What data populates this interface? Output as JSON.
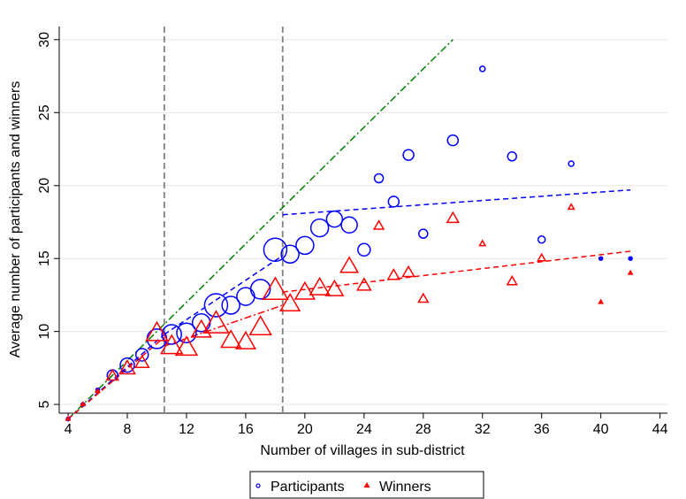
{
  "chart_data": {
    "type": "scatter",
    "xlabel": "Number of villages in sub-district",
    "ylabel": "Average number of participants and winners",
    "x": [
      4,
      5,
      6,
      7,
      8,
      9,
      10,
      11,
      12,
      13,
      14,
      15,
      16,
      17,
      18,
      19,
      20,
      21,
      22,
      23,
      24,
      25,
      26,
      27,
      28,
      30,
      32,
      34,
      36,
      38,
      40,
      42
    ],
    "series": [
      {
        "name": "Participants",
        "color": "#0000ff",
        "marker": "circle",
        "values": [
          4.0,
          5.0,
          6.0,
          7.0,
          7.7,
          8.4,
          9.5,
          9.8,
          9.9,
          10.6,
          11.8,
          11.8,
          12.4,
          12.9,
          15.6,
          15.3,
          15.9,
          17.1,
          17.7,
          17.3,
          15.6,
          20.5,
          18.9,
          22.1,
          16.7,
          23.1,
          28.0,
          22.0,
          16.3,
          21.5,
          15.0,
          15.0
        ],
        "sizes": [
          2,
          2,
          2,
          6,
          8,
          7,
          11,
          11,
          11,
          10,
          13,
          10,
          10,
          11,
          13,
          10,
          10,
          10,
          9,
          9,
          7,
          5,
          6,
          6,
          5,
          6,
          3,
          5,
          4,
          3,
          2,
          2
        ]
      },
      {
        "name": "Winners",
        "color": "#ff0000",
        "marker": "triangle",
        "values": [
          4.0,
          5.0,
          5.9,
          6.9,
          7.4,
          7.8,
          9.8,
          8.9,
          8.8,
          10.0,
          10.4,
          9.3,
          9.2,
          10.2,
          12.7,
          11.8,
          12.6,
          12.9,
          12.8,
          14.4,
          13.1,
          17.2,
          13.8,
          14.0,
          12.2,
          17.7,
          16.0,
          13.4,
          15.0,
          18.5,
          12.0,
          14.0
        ],
        "sizes": [
          2,
          2,
          2,
          6,
          8,
          7,
          11,
          11,
          11,
          10,
          13,
          10,
          10,
          11,
          13,
          10,
          10,
          10,
          9,
          9,
          7,
          5,
          6,
          6,
          5,
          6,
          3,
          5,
          4,
          3,
          2,
          2
        ]
      }
    ],
    "fit_lines": [
      {
        "color": "#008000",
        "dash": "8 3 2 3",
        "x": [
          4,
          30
        ],
        "y": [
          4,
          30
        ]
      },
      {
        "color": "#0000ff",
        "dash": "6 4",
        "x": [
          4,
          10.5
        ],
        "y": [
          4,
          9.8
        ]
      },
      {
        "color": "#0000ff",
        "dash": "6 4",
        "x": [
          10.5,
          18.5
        ],
        "y": [
          9.8,
          15.2
        ]
      },
      {
        "color": "#0000ff",
        "dash": "6 4",
        "x": [
          18.5,
          42
        ],
        "y": [
          18.0,
          19.7
        ]
      },
      {
        "color": "#ff0000",
        "dash": "6 4",
        "x": [
          4,
          10.5
        ],
        "y": [
          4,
          9.6
        ]
      },
      {
        "color": "#ff0000",
        "dash": "8 3 2 3",
        "x": [
          10.5,
          18.5
        ],
        "y": [
          9.0,
          11.8
        ]
      },
      {
        "color": "#ff0000",
        "dash": "6 4",
        "x": [
          18.5,
          42
        ],
        "y": [
          12.7,
          15.5
        ]
      }
    ],
    "vlines": [
      10.5,
      18.5
    ],
    "xlim": [
      3.4,
      44.5
    ],
    "ylim": [
      4.4,
      30.9
    ],
    "xticks": [
      4,
      8,
      12,
      16,
      20,
      24,
      28,
      32,
      36,
      40,
      44
    ],
    "yticks": [
      5,
      10,
      15,
      20,
      25,
      30
    ],
    "grid": true,
    "legend": "bottom"
  }
}
